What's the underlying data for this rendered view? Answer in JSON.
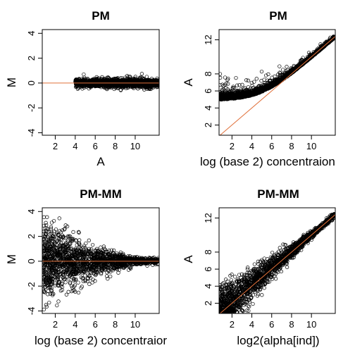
{
  "colors": {
    "points": "#000000",
    "reference_line": "#E0703A",
    "background": "#ffffff"
  },
  "chart_data": [
    {
      "type": "scatter",
      "title": "PM",
      "xlabel": "A",
      "ylabel": "M",
      "xlim": [
        0.7,
        12.4
      ],
      "ylim": [
        -4.2,
        4.3
      ],
      "xticks": [
        2,
        4,
        6,
        8,
        10
      ],
      "yticks": [
        -4,
        -2,
        0,
        2,
        4
      ],
      "reference_line": {
        "kind": "horizontal",
        "y": 0
      },
      "point_cloud": {
        "x_range": [
          4,
          12.3
        ],
        "y_center": 0,
        "y_spread": 0.2,
        "n_points": 1800,
        "shape": "tight horizontal band"
      }
    },
    {
      "type": "scatter",
      "title": "PM",
      "xlabel": "log (base 2) concentraion",
      "ylabel": "A",
      "xlim": [
        0.7,
        12.4
      ],
      "ylim": [
        0.8,
        13.2
      ],
      "xticks": [
        2,
        4,
        6,
        8,
        10
      ],
      "yticks": [
        2,
        4,
        6,
        8,
        12
      ],
      "reference_line": {
        "kind": "identity",
        "slope": 1,
        "intercept": 0
      },
      "point_cloud": {
        "x_range": [
          0.8,
          12.3
        ],
        "floor_level": 5.0,
        "y_spread_low": 0.7,
        "y_spread_high": 0.15,
        "n_points": 1800,
        "shape": "flat near 5 for low x, converging to identity line above x=6"
      }
    },
    {
      "type": "scatter",
      "title": "PM-MM",
      "xlabel": "log (base 2) concentraior",
      "ylabel": "M",
      "xlim": [
        0.7,
        12.4
      ],
      "ylim": [
        -4.2,
        4.3
      ],
      "xticks": [
        2,
        4,
        6,
        8,
        10
      ],
      "yticks": [
        -4,
        -2,
        0,
        2,
        4
      ],
      "reference_line": {
        "kind": "horizontal",
        "y": 0
      },
      "point_cloud": {
        "x_range": [
          0.8,
          12.3
        ],
        "y_center": 0,
        "y_spread_low": 1.3,
        "y_spread_high": 0.12,
        "n_points": 1800,
        "shape": "funnel narrowing as x increases"
      }
    },
    {
      "type": "scatter",
      "title": "PM-MM",
      "xlabel": "log2(alpha[ind])",
      "ylabel": "A",
      "xlim": [
        0.7,
        12.4
      ],
      "ylim": [
        0.8,
        13.2
      ],
      "xticks": [
        2,
        4,
        6,
        8,
        10
      ],
      "yticks": [
        2,
        4,
        6,
        8,
        12
      ],
      "reference_line": {
        "kind": "identity",
        "slope": 1,
        "intercept": 0
      },
      "point_cloud": {
        "x_range": [
          0.8,
          12.3
        ],
        "y_spread_low": 1.3,
        "y_spread_high": 0.15,
        "n_points": 1800,
        "shape": "scatter around identity line, wide at low x"
      }
    }
  ]
}
